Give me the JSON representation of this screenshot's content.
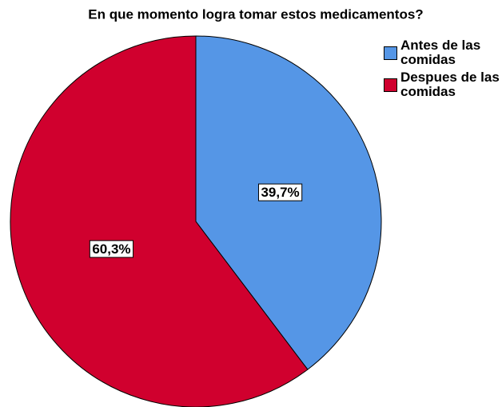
{
  "chart_data": {
    "type": "pie",
    "title": "En que momento logra tomar estos medicamentos?",
    "categories": [
      "Antes de las comidas",
      "Despues de las comidas"
    ],
    "values": [
      39.7,
      60.3
    ],
    "value_labels": [
      "39,7%",
      "60,3%"
    ],
    "colors": [
      "#5596e6",
      "#d0002e"
    ],
    "legend": "top-right"
  }
}
